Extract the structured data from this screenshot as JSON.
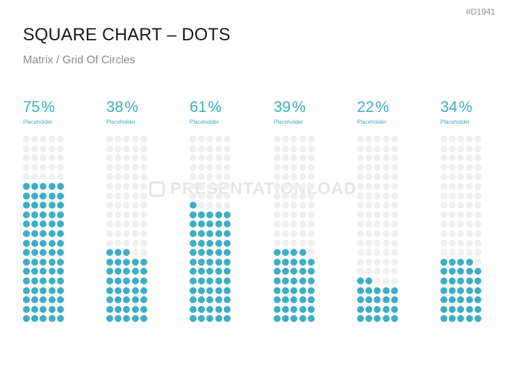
{
  "slide_code": "#D1941",
  "title": "SQUARE CHART – DOTS",
  "subtitle": "Matrix / Grid Of Circles",
  "watermark": "PRESENTATIONLOAD",
  "colors": {
    "accent": "#3daec6",
    "empty_dot": "#f0f0f0"
  },
  "chart_data": {
    "type": "dot-matrix",
    "grid": {
      "rows": 20,
      "cols": 5,
      "total": 100
    },
    "fill_direction": "bottom-up",
    "unit": "%",
    "series": [
      {
        "value": 75,
        "label": "75",
        "caption": "Placeholder"
      },
      {
        "value": 38,
        "label": "38",
        "caption": "Placeholder"
      },
      {
        "value": 61,
        "label": "61",
        "caption": "Placeholder"
      },
      {
        "value": 39,
        "label": "39",
        "caption": "Placeholder"
      },
      {
        "value": 22,
        "label": "22",
        "caption": "Placeholder"
      },
      {
        "value": 34,
        "label": "34",
        "caption": "Placeholder"
      }
    ]
  }
}
